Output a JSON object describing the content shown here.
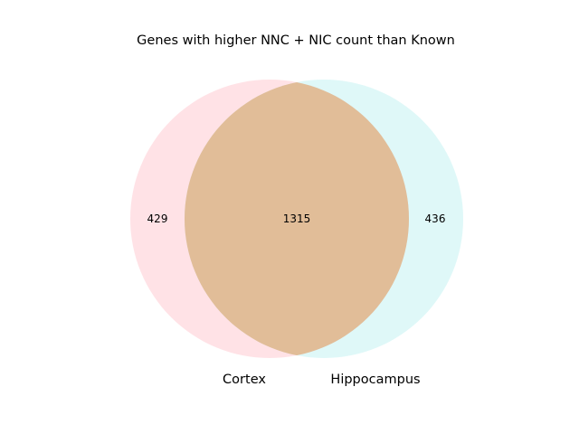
{
  "title": "Genes with higher NNC + NIC count than Known",
  "sets": [
    {
      "name": "Cortex",
      "only_count": "429",
      "color": "#ffb6c1"
    },
    {
      "name": "Hippocampus",
      "only_count": "436",
      "color": "#afeeee"
    }
  ],
  "intersection": {
    "count": "1315",
    "color": "#e1bd98"
  }
}
